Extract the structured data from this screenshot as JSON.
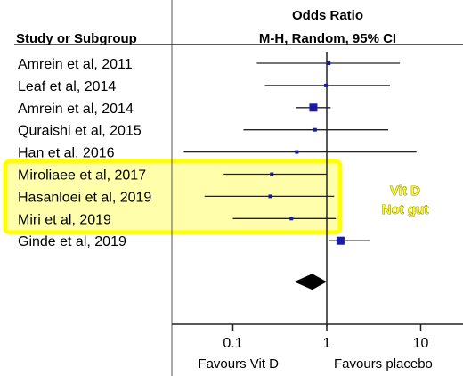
{
  "header": {
    "study_col": "Study or Subgroup",
    "or_title": "Odds Ratio",
    "or_method": "M-H, Random, 95% CI"
  },
  "chart_data": {
    "type": "forest",
    "x_scale": "log",
    "xlim": [
      0.03,
      25
    ],
    "x_ticks": [
      {
        "value": 0.1,
        "label": "0.1"
      },
      {
        "value": 1,
        "label": "1"
      },
      {
        "value": 10,
        "label": "10"
      }
    ],
    "favours_left": "Favours Vit D",
    "favours_right": "Favours placebo",
    "studies": [
      {
        "name": "Amrein et al, 2011",
        "or": 1.05,
        "lo": 0.18,
        "hi": 6.0
      },
      {
        "name": "Leaf et al, 2014",
        "or": 0.98,
        "lo": 0.22,
        "hi": 4.7
      },
      {
        "name": "Amrein et al, 2014",
        "or": 0.72,
        "lo": 0.47,
        "hi": 1.1
      },
      {
        "name": "Quraishi et al, 2015",
        "or": 0.75,
        "lo": 0.13,
        "hi": 4.5
      },
      {
        "name": "Han et al, 2016",
        "or": 0.48,
        "lo": 0.03,
        "hi": 9.0
      },
      {
        "name": "Miroliaee et al, 2017",
        "or": 0.26,
        "lo": 0.08,
        "hi": 1.0
      },
      {
        "name": "Hasanloei et al, 2019",
        "or": 0.25,
        "lo": 0.05,
        "hi": 1.2
      },
      {
        "name": "Miri et al, 2019",
        "or": 0.42,
        "lo": 0.1,
        "hi": 1.25
      },
      {
        "name": "Ginde et al, 2019",
        "or": 1.4,
        "lo": 1.05,
        "hi": 2.9
      }
    ],
    "overall": {
      "or": 0.7,
      "lo": 0.45,
      "hi": 1.0
    },
    "highlight": {
      "studies": [
        "Miroliaee et al, 2017",
        "Hasanloei et al, 2019",
        "Miri et al, 2019"
      ],
      "line1": "Vit D",
      "line2": "Not gut",
      "color": "#ffff00"
    },
    "marker_color": "#1a1aa6"
  }
}
